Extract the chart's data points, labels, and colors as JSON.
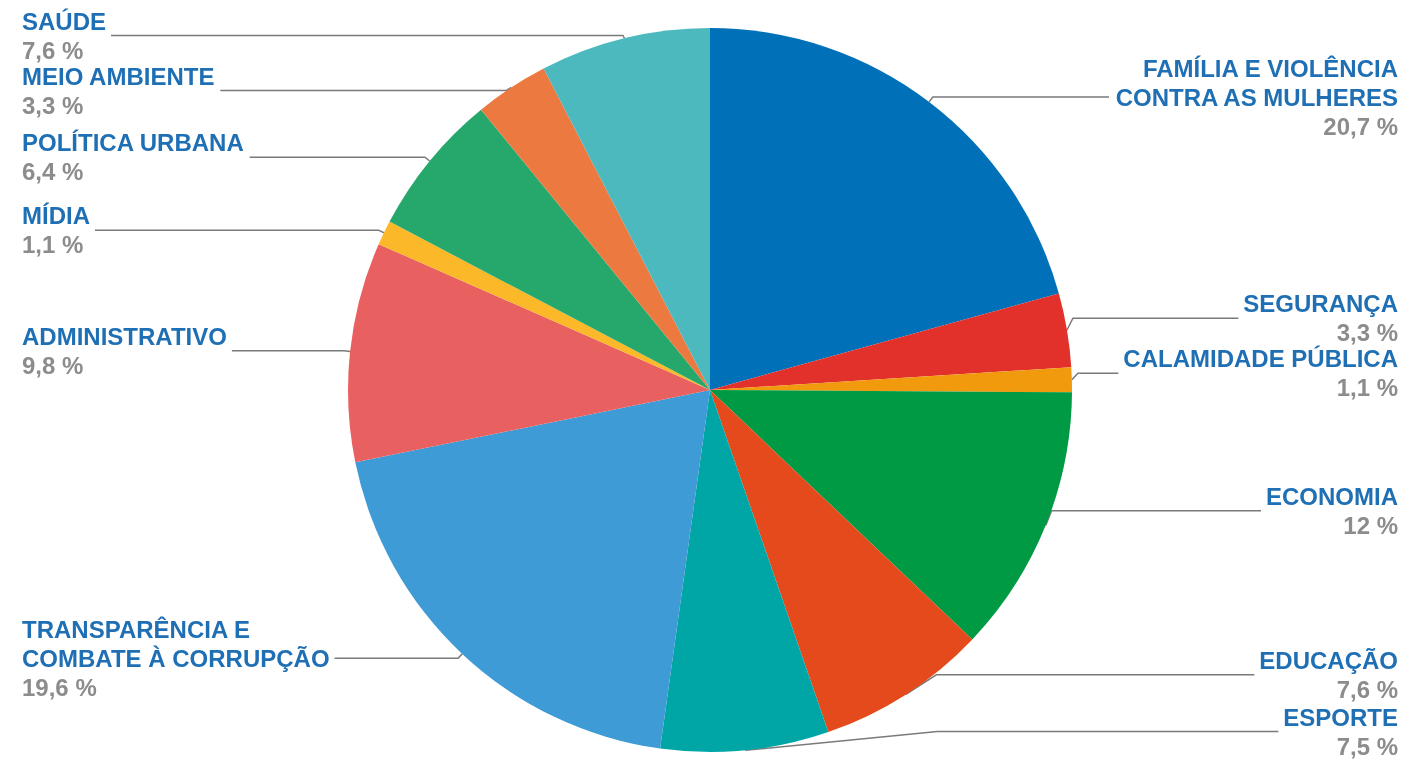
{
  "chart_data": {
    "type": "pie",
    "categories": [
      "FAMÍLIA E VIOLÊNCIA CONTRA AS MULHERES",
      "SEGURANÇA",
      "CALAMIDADE PÚBLICA",
      "ECONOMIA",
      "EDUCAÇÃO",
      "ESPORTE",
      "TRANSPARÊNCIA E COMBATE À CORRUPÇÃO",
      "ADMINISTRATIVO",
      "MÍDIA",
      "POLÍTICA URBANA",
      "MEIO AMBIENTE",
      "SAÚDE"
    ],
    "values": [
      20.7,
      3.3,
      1.1,
      12,
      7.6,
      7.5,
      19.6,
      9.8,
      1.1,
      6.4,
      3.3,
      7.6
    ],
    "value_labels": [
      "20,7 %",
      "3,3 %",
      "1,1 %",
      "12 %",
      "7,6 %",
      "7,5 %",
      "19,6 %",
      "9,8 %",
      "1,1 %",
      "6,4 %",
      "3,3 %",
      "7,6 %"
    ],
    "colors": [
      "#0070b8",
      "#e2302b",
      "#f29a0e",
      "#009a44",
      "#e44a1c",
      "#00a5a5",
      "#3f9bd6",
      "#e96060",
      "#fbb829",
      "#26a86c",
      "#ec7a40",
      "#4bb9bd"
    ]
  }
}
